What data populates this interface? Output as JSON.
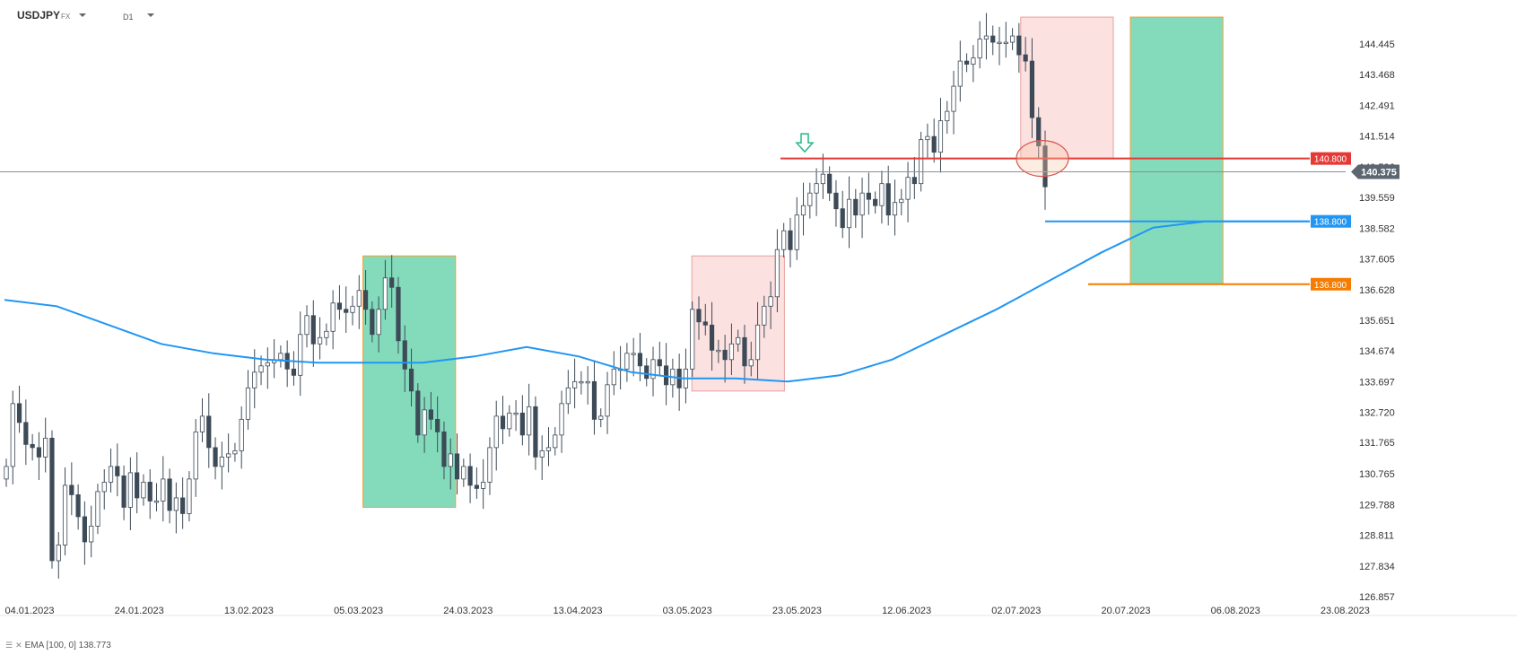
{
  "header": {
    "symbol": "USDJPY",
    "market": "FX",
    "timeframe": "D1"
  },
  "indicator_legend": {
    "icons": [
      "list-icon",
      "close-icon"
    ],
    "label": "EMA",
    "params": "[100, 0]",
    "value": "138.773"
  },
  "colors": {
    "bull_candle_fill": "#ffffff",
    "bear_candle_fill": "#3d4a57",
    "candle_outline": "#3d4a57",
    "ema": "#2196f3",
    "green_zone": "#7dd9b8",
    "red_zone": "#fcdcdc",
    "zone_border": "#f0a030",
    "resistance": "#e53935",
    "target": "#f57c00",
    "current_price": "#5c6670"
  },
  "chart_data": {
    "type": "candlestick",
    "instrument": "USDJPY",
    "timeframe": "D1",
    "x_tick_labels": [
      "04.01.2023",
      "24.01.2023",
      "13.02.2023",
      "05.03.2023",
      "24.03.2023",
      "13.04.2023",
      "03.05.2023",
      "23.05.2023",
      "12.06.2023",
      "02.07.2023",
      "20.07.2023",
      "06.08.2023",
      "23.08.2023"
    ],
    "y_tick_labels": [
      "144.445",
      "143.468",
      "142.491",
      "141.514",
      "140.536",
      "139.559",
      "138.582",
      "137.605",
      "136.628",
      "135.651",
      "134.674",
      "133.697",
      "132.720",
      "131.765",
      "130.765",
      "129.788",
      "128.811",
      "127.834",
      "126.857"
    ],
    "ylim": [
      126.857,
      145.4
    ],
    "series_close": [
      131.0,
      133.0,
      132.4,
      131.7,
      131.6,
      131.3,
      131.9,
      128.0,
      128.5,
      130.4,
      130.1,
      129.4,
      128.6,
      129.1,
      130.2,
      130.5,
      131.0,
      130.7,
      129.7,
      130.8,
      130.0,
      130.5,
      129.9,
      129.9,
      130.6,
      129.6,
      130.0,
      129.5,
      130.6,
      132.1,
      132.6,
      131.6,
      131.0,
      131.3,
      131.4,
      131.5,
      132.5,
      133.5,
      134.0,
      134.2,
      134.3,
      134.4,
      134.6,
      134.1,
      133.9,
      135.2,
      135.8,
      134.9,
      135.1,
      135.3,
      136.2,
      136.0,
      135.9,
      136.1,
      136.6,
      136.0,
      135.2,
      136.0,
      137.0,
      136.7,
      135.0,
      134.1,
      133.4,
      132.0,
      132.8,
      132.5,
      132.1,
      131.0,
      131.4,
      130.6,
      131.0,
      130.4,
      130.3,
      130.5,
      131.6,
      132.6,
      132.2,
      132.7,
      132.7,
      132.0,
      132.9,
      131.3,
      131.5,
      131.6,
      132.0,
      133.0,
      133.5,
      133.7,
      133.7,
      133.7,
      132.5,
      132.6,
      133.6,
      134.1,
      134.1,
      134.6,
      134.6,
      134.2,
      133.8,
      134.4,
      134.2,
      133.6,
      134.1,
      133.5,
      134.1,
      136.0,
      135.6,
      135.5,
      134.7,
      134.7,
      134.4,
      134.9,
      135.1,
      134.2,
      134.4,
      135.5,
      136.1,
      136.4,
      137.9,
      138.5,
      137.9,
      139.0,
      139.3,
      139.7,
      140.0,
      140.3,
      139.7,
      139.2,
      138.6,
      139.5,
      139.0,
      139.7,
      139.5,
      139.3,
      140.0,
      139.0,
      139.4,
      139.5,
      140.2,
      140.0,
      141.4,
      141.5,
      141.0,
      142.0,
      142.3,
      143.1,
      143.9,
      143.8,
      144.0,
      144.6,
      144.7,
      144.5,
      144.5,
      144.5,
      144.7,
      144.1,
      143.9,
      142.1,
      141.2,
      139.9
    ],
    "ema": {
      "name": "EMA",
      "params": "[100, 0]",
      "last_value": 138.773,
      "values": [
        136.3,
        136.1,
        135.5,
        134.9,
        134.6,
        134.4,
        134.3,
        134.3,
        134.3,
        134.5,
        134.8,
        134.5,
        134.0,
        133.8,
        133.8,
        133.7,
        133.9,
        134.4,
        135.2,
        136.0,
        136.9,
        137.8,
        138.6,
        138.8,
        138.8,
        138.8
      ]
    },
    "levels": [
      {
        "label": "140.800",
        "value": 140.8,
        "color": "#e53935"
      },
      {
        "label": "138.800",
        "value": 138.8,
        "color": "#2196f3"
      },
      {
        "label": "136.800",
        "value": 136.8,
        "color": "#f57c00"
      }
    ],
    "current_price": {
      "label": "140.375",
      "value": 140.375
    },
    "zones": [
      {
        "kind": "green",
        "from": "05.03.2023",
        "to": "24.03.2023",
        "high": 137.7,
        "low": 129.7
      },
      {
        "kind": "red",
        "from": "03.05.2023",
        "to": "23.05.2023",
        "high": 137.7,
        "low": 133.4
      },
      {
        "kind": "red",
        "from": "02.07.2023",
        "to": "20.07.2023",
        "high": 145.3,
        "low": 140.8
      },
      {
        "kind": "green",
        "from": "20.07.2023",
        "to": "06.08.2023",
        "high": 145.3,
        "low": 136.8
      }
    ]
  }
}
